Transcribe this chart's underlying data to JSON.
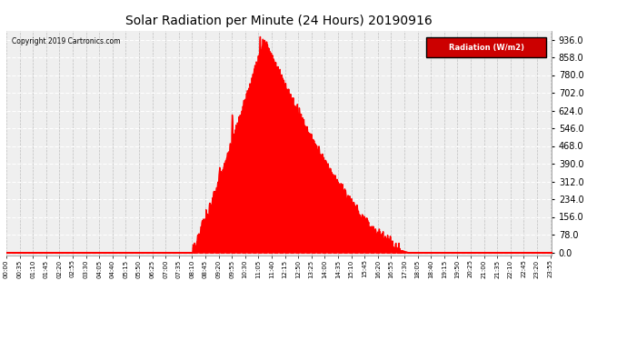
{
  "title": "Solar Radiation per Minute (24 Hours) 20190916",
  "copyright_text": "Copyright 2019 Cartronics.com",
  "legend_label": "Radiation (W/m2)",
  "fill_color": "#FF0000",
  "line_color": "#FF0000",
  "background_color": "#FFFFFF",
  "h_grid_color": "#FFFFFF",
  "v_grid_color": "#AAAAAA",
  "dashed_line_color": "#FF0000",
  "yticks": [
    0.0,
    78.0,
    156.0,
    234.0,
    312.0,
    390.0,
    468.0,
    546.0,
    624.0,
    702.0,
    780.0,
    858.0,
    936.0
  ],
  "ymax": 975,
  "ymin": -15,
  "total_minutes": 1440,
  "sunrise_minute": 490,
  "sunset_minute": 1065,
  "peak_minute": 680,
  "peak_value": 936,
  "spike_minute": 671,
  "spike_value": 950,
  "xtick_interval": 35,
  "legend_bg": "#CC0000"
}
